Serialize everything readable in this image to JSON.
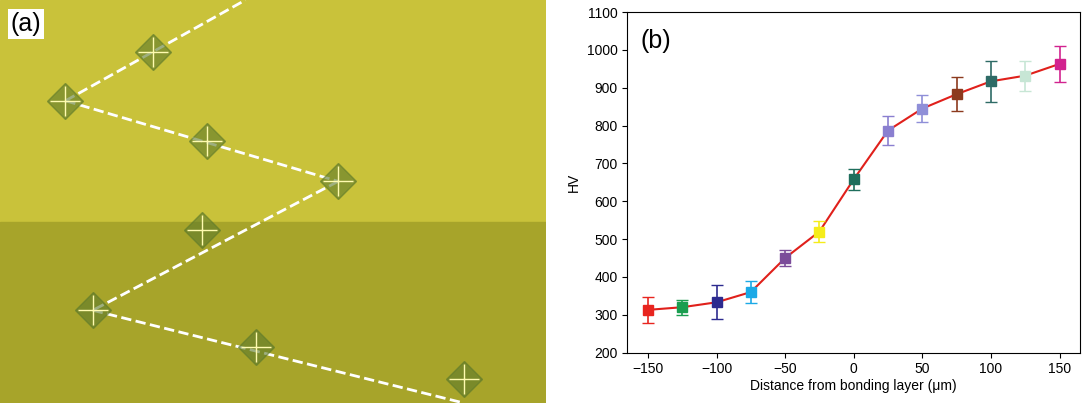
{
  "image_panel": {
    "label": "(a)"
  },
  "chart_data": {
    "type": "line",
    "panel_label": "(b)",
    "x_label": "Distance from bonding layer (μm)",
    "y_label": "HV",
    "x": [
      -150,
      -125,
      -100,
      -75,
      -50,
      -25,
      0,
      25,
      50,
      75,
      100,
      125,
      150
    ],
    "values": [
      313,
      320,
      333,
      360,
      450,
      520,
      658,
      787,
      845,
      883,
      917,
      932,
      963
    ],
    "errors": [
      35,
      20,
      45,
      30,
      22,
      28,
      28,
      38,
      35,
      45,
      55,
      40,
      48
    ],
    "color": "#e0201b",
    "colors": [
      "#e8251f",
      "#1a9e50",
      "#2d2b8f",
      "#1ca9e6",
      "#7b4c9a",
      "#f5ec1a",
      "#1f6e5c",
      "#8a7fd0",
      "#8f8fd8",
      "#8c3a1e",
      "#2e6b66",
      "#c7e6d5",
      "#d2238f"
    ],
    "marker": "s",
    "line_style": "solid",
    "xlim": [
      -165,
      165
    ],
    "xticks": [
      {
        "value": -150,
        "label": "−150"
      },
      {
        "value": -100,
        "label": "−100"
      },
      {
        "value": -50,
        "label": "−50"
      },
      0,
      50,
      100,
      150
    ],
    "ylim": [
      200,
      1100
    ],
    "yticks": [
      200,
      300,
      400,
      500,
      600,
      700,
      800,
      900,
      1000,
      1100
    ],
    "grid": false
  }
}
